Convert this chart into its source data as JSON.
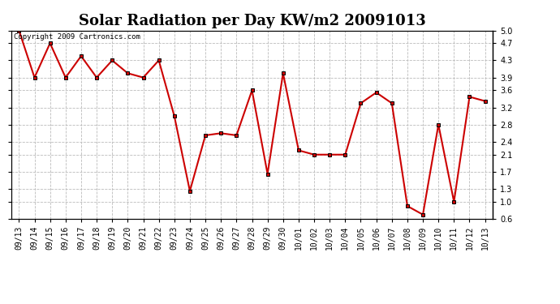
{
  "title": "Solar Radiation per Day KW/m2 20091013",
  "copyright_text": "Copyright 2009 Cartronics.com",
  "x_labels": [
    "09/13",
    "09/14",
    "09/15",
    "09/16",
    "09/17",
    "09/18",
    "09/19",
    "09/20",
    "09/21",
    "09/22",
    "09/23",
    "09/24",
    "09/25",
    "09/26",
    "09/27",
    "09/28",
    "09/29",
    "09/30",
    "10/01",
    "10/02",
    "10/03",
    "10/04",
    "10/05",
    "10/06",
    "10/07",
    "10/08",
    "10/09",
    "10/10",
    "10/11",
    "10/12",
    "10/13"
  ],
  "y_values": [
    5.0,
    3.9,
    4.7,
    3.9,
    4.4,
    3.9,
    4.3,
    4.0,
    3.9,
    4.3,
    3.0,
    1.25,
    2.55,
    2.6,
    2.55,
    3.6,
    1.65,
    4.0,
    2.2,
    2.1,
    2.1,
    2.1,
    3.3,
    3.55,
    3.3,
    0.9,
    0.7,
    2.8,
    1.0,
    3.45,
    3.35
  ],
  "line_color": "#cc0000",
  "marker": "s",
  "marker_size": 2.5,
  "ylim_min": 0.6,
  "ylim_max": 5.0,
  "yticks": [
    0.6,
    1.0,
    1.3,
    1.7,
    2.1,
    2.4,
    2.8,
    3.2,
    3.6,
    3.9,
    4.3,
    4.7,
    5.0
  ],
  "grid_color": "#bbbbbb",
  "bg_color": "#ffffff",
  "title_fontsize": 13,
  "tick_fontsize": 7,
  "copyright_fontsize": 6.5,
  "fig_width": 6.9,
  "fig_height": 3.75,
  "dpi": 100
}
